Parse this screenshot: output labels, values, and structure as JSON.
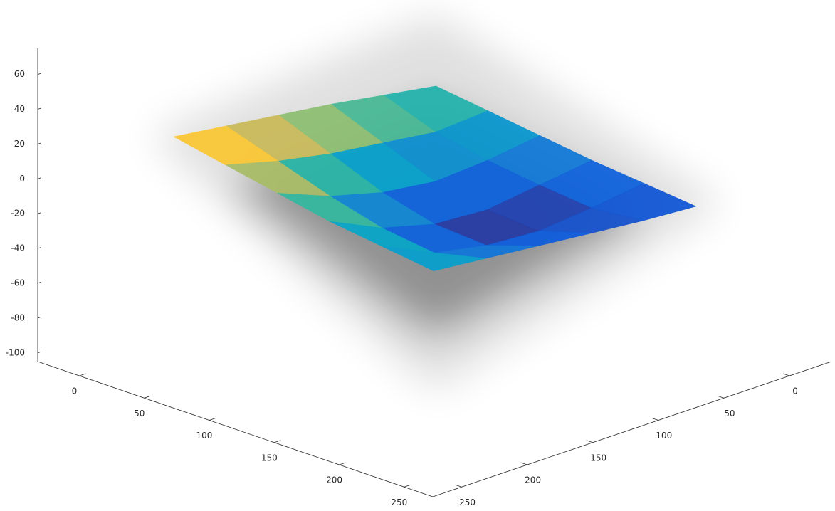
{
  "chart_data": {
    "type": "surface",
    "x": [
      0,
      40,
      80,
      120,
      160,
      200
    ],
    "y": [
      0,
      40,
      80,
      120,
      160,
      200
    ],
    "z": [
      [
        -8,
        -12,
        -16,
        -20,
        -23,
        -26
      ],
      [
        -3,
        -14,
        -20,
        -24,
        -27,
        -24
      ],
      [
        2,
        -10,
        -22,
        -28,
        -30,
        -21
      ],
      [
        6,
        -6,
        -18,
        -26,
        -28,
        -18
      ],
      [
        10,
        0,
        -10,
        -18,
        -22,
        -15
      ],
      [
        14,
        8,
        2,
        -4,
        -8,
        -12
      ]
    ],
    "xlim": [
      -32,
      272
    ],
    "ylim": [
      -32,
      272
    ],
    "zlim": [
      -105,
      75
    ],
    "xticks": [
      0,
      50,
      100,
      150,
      200,
      250
    ],
    "yticks": [
      0,
      50,
      100,
      150,
      200,
      250
    ],
    "zticks": [
      -100,
      -80,
      -60,
      -40,
      -20,
      0,
      20,
      40,
      60
    ],
    "colormap": "parula"
  }
}
